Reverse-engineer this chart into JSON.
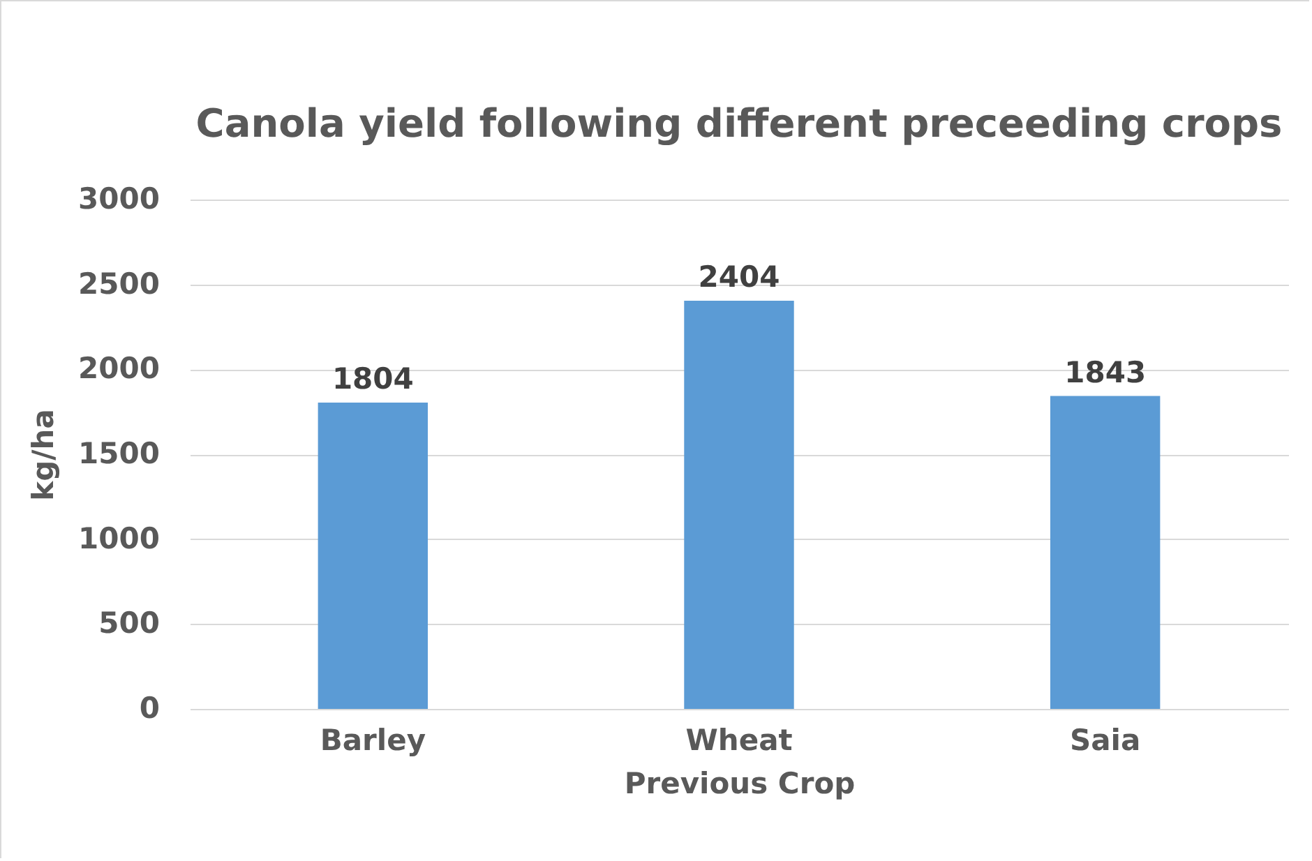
{
  "chart_data": {
    "type": "bar",
    "title": "Canola yield following different preceeding crops",
    "xlabel": "Previous Crop",
    "ylabel": "kg/ha",
    "categories": [
      "Barley",
      "Wheat",
      "Saia"
    ],
    "values": [
      1804,
      2404,
      1843
    ],
    "color": "#5b9bd5",
    "ylim": [
      0,
      3000
    ],
    "yticks": [
      0,
      500,
      1000,
      1500,
      2000,
      2500,
      3000
    ],
    "grid": "y",
    "data_labels": true
  }
}
